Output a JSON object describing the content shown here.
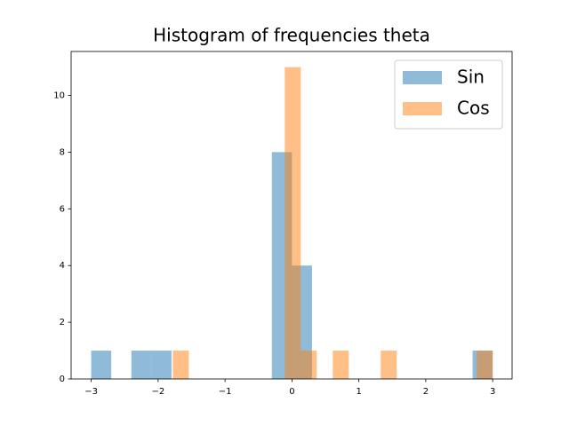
{
  "chart_data": {
    "type": "histogram",
    "title": "Histogram of frequencies theta",
    "series": [
      {
        "name": "Sin",
        "color": "#1f77b4",
        "bins": [
          -3,
          -2.7,
          -2.4,
          -2.1,
          -1.8,
          -1.5,
          -1.2,
          -0.9,
          -0.6,
          -0.3,
          0,
          0.3,
          0.6,
          0.9,
          1.2,
          1.5,
          1.8,
          2.1,
          2.4,
          2.7,
          3
        ],
        "values": [
          1,
          0,
          1,
          1,
          0,
          0,
          0,
          0,
          0,
          8,
          4,
          0,
          0,
          0,
          0,
          0,
          0,
          0,
          0,
          1
        ]
      },
      {
        "name": "Cos",
        "color": "#ff7f0e",
        "bins": [
          -1.78,
          -1.541,
          -1.302,
          -1.063,
          -0.824,
          -0.585,
          -0.346,
          -0.107,
          0.132,
          0.371,
          0.61,
          0.849,
          1.088,
          1.327,
          1.566,
          1.805,
          2.044,
          2.283,
          2.522,
          2.761,
          3
        ],
        "values": [
          1,
          0,
          0,
          0,
          0,
          0,
          0,
          11,
          1,
          0,
          1,
          0,
          0,
          1,
          0,
          0,
          0,
          0,
          0,
          1
        ]
      }
    ],
    "alpha": 0.5,
    "xlim": [
      -3.3,
      3.29
    ],
    "ylim": [
      0,
      11.55
    ],
    "xticks": [
      {
        "value": -3,
        "label": "−3"
      },
      {
        "value": -2,
        "label": "−2"
      },
      {
        "value": -1,
        "label": "−1"
      },
      0,
      1,
      2,
      3
    ],
    "yticks": [
      0,
      2,
      4,
      6,
      8,
      10
    ],
    "legend": "upper right"
  }
}
